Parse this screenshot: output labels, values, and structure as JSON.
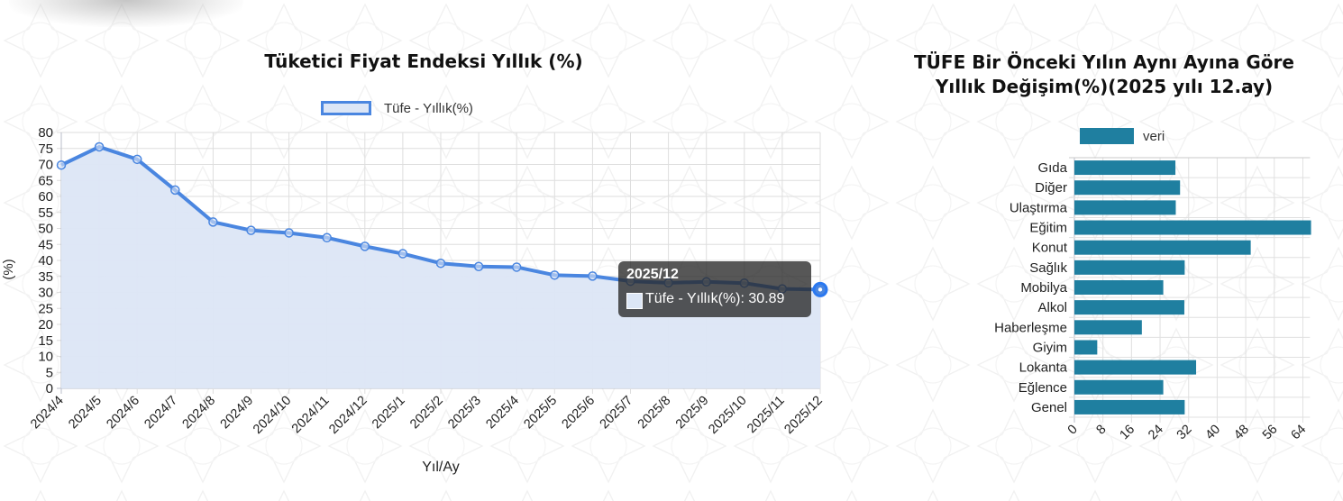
{
  "left_chart": {
    "title": "Tüketici Fiyat Endeksi Yıllık (%)",
    "legend_label": "Tüfe - Yıllık(%)",
    "y_axis_label": "(%)",
    "x_axis_label": "Yıl/Ay",
    "line_color": "#4a86e0",
    "fill_color": "#dce6f6",
    "tooltip": {
      "title": "2025/12",
      "series": "Tüfe - Yıllık(%)",
      "value": "30.89",
      "text": "Tüfe - Yıllık(%): 30.89"
    }
  },
  "right_chart": {
    "title_line1": "TÜFE Bir Önceki Yılın Aynı Ayına Göre",
    "title_line2": "Yıllık Değişim(%)(2025 yılı 12.ay)",
    "legend_label": "veri",
    "bar_color": "#1f7fa0"
  },
  "chart_data": [
    {
      "type": "line",
      "title": "Tüketici Fiyat Endeksi Yıllık (%)",
      "xlabel": "Yıl/Ay",
      "ylabel": "(%)",
      "ylim": [
        0,
        80
      ],
      "y_ticks": [
        0,
        5,
        10,
        15,
        20,
        25,
        30,
        35,
        40,
        45,
        50,
        55,
        60,
        65,
        70,
        75,
        80
      ],
      "grid": true,
      "legend_position": "top",
      "categories": [
        "2024/4",
        "2024/5",
        "2024/6",
        "2024/7",
        "2024/8",
        "2024/9",
        "2024/10",
        "2024/11",
        "2024/12",
        "2025/1",
        "2025/2",
        "2025/3",
        "2025/4",
        "2025/5",
        "2025/6",
        "2025/7",
        "2025/8",
        "2025/9",
        "2025/10",
        "2025/11",
        "2025/12"
      ],
      "series": [
        {
          "name": "Tüfe - Yıllık(%)",
          "values": [
            69.8,
            75.5,
            71.6,
            62.0,
            52.0,
            49.4,
            48.6,
            47.1,
            44.4,
            42.1,
            39.1,
            38.1,
            37.9,
            35.4,
            35.1,
            33.5,
            33.0,
            33.3,
            32.9,
            31.1,
            30.89
          ]
        }
      ],
      "annotations": [
        "Tooltip: 2025/12 — Tüfe - Yıllık(%): 30.89"
      ]
    },
    {
      "type": "bar",
      "orientation": "horizontal",
      "title": "TÜFE Bir Önceki Yılın Aynı Ayına Göre Yıllık Değişim(%)(2025 yılı 12.ay)",
      "xlabel": "",
      "ylabel": "",
      "xlim": [
        0,
        66
      ],
      "x_ticks": [
        0,
        8,
        16,
        24,
        32,
        40,
        48,
        56,
        64
      ],
      "grid": true,
      "legend_position": "top",
      "categories": [
        "Gıda",
        "Diğer",
        "Ulaştırma",
        "Eğitim",
        "Konut",
        "Sağlık",
        "Mobilya",
        "Alkol",
        "Haberleşme",
        "Giyim",
        "Lokanta",
        "Eğlence",
        "Genel"
      ],
      "series": [
        {
          "name": "veri",
          "values": [
            28.3,
            29.6,
            28.4,
            66.3,
            49.4,
            30.9,
            24.9,
            30.8,
            18.9,
            6.4,
            34.1,
            24.9,
            30.9
          ]
        }
      ]
    }
  ]
}
